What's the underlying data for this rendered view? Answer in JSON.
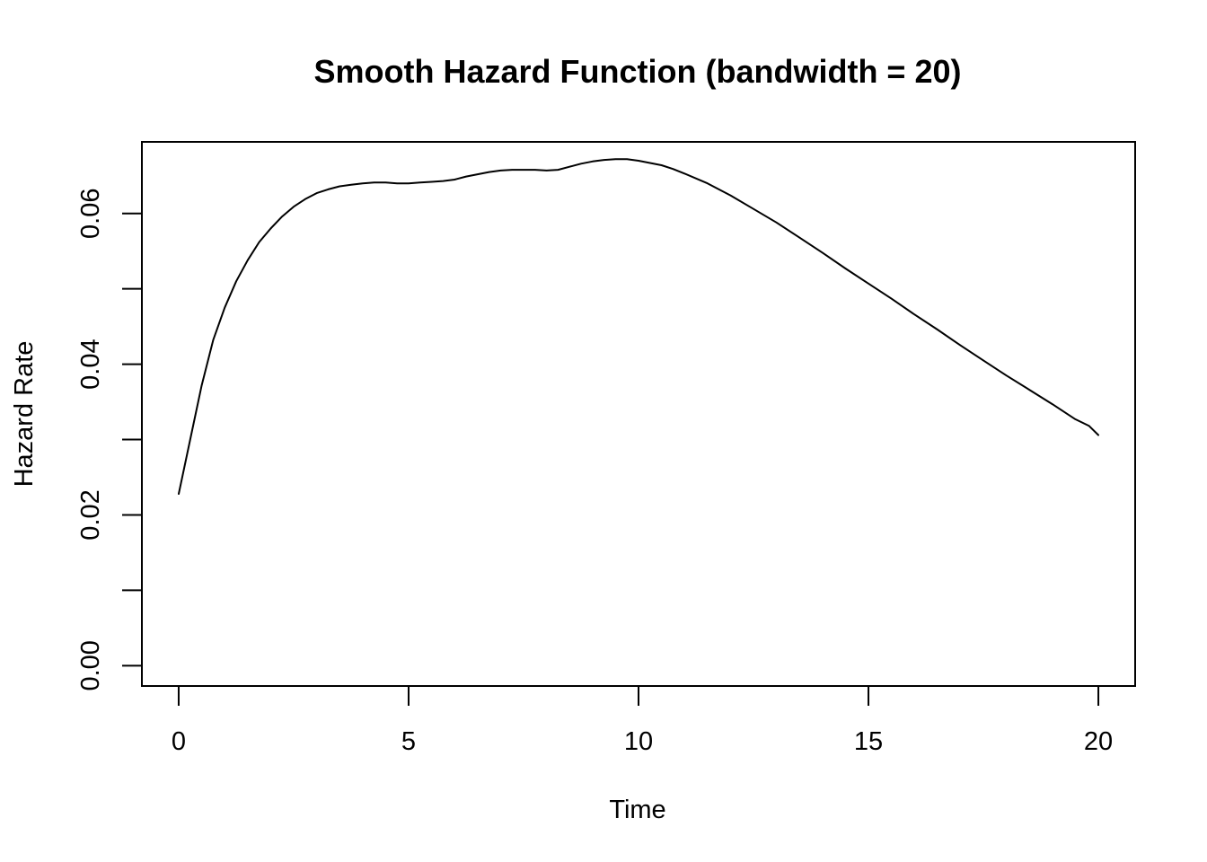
{
  "chart_data": {
    "type": "line",
    "title": "Smooth Hazard Function (bandwidth = 20)",
    "xlabel": "Time",
    "ylabel": "Hazard Rate",
    "xlim": [
      -0.8,
      20.8
    ],
    "ylim": [
      -0.0027,
      0.0695
    ],
    "x_ticks": [
      0,
      5,
      10,
      15,
      20
    ],
    "x_tick_labels": [
      "0",
      "5",
      "10",
      "15",
      "20"
    ],
    "y_ticks": [
      0.0,
      0.01,
      0.02,
      0.03,
      0.04,
      0.05,
      0.06
    ],
    "y_tick_labels": [
      "0.00",
      "",
      "0.02",
      "",
      "0.04",
      "",
      "0.06"
    ],
    "grid": false,
    "line_color": "#000000",
    "series": [
      {
        "x": [
          0,
          0.25,
          0.5,
          0.75,
          1.0,
          1.25,
          1.5,
          1.75,
          2.0,
          2.25,
          2.5,
          2.75,
          3.0,
          3.25,
          3.5,
          3.75,
          4.0,
          4.25,
          4.5,
          4.75,
          5.0,
          5.25,
          5.5,
          5.75,
          6.0,
          6.25,
          6.5,
          6.75,
          7.0,
          7.25,
          7.5,
          7.75,
          8.0,
          8.25,
          8.5,
          8.75,
          9.0,
          9.25,
          9.5,
          9.75,
          10.0,
          10.25,
          10.5,
          10.75,
          11.0,
          11.5,
          12.0,
          12.5,
          13.0,
          13.5,
          14.0,
          14.5,
          15.0,
          15.5,
          16.0,
          16.5,
          17.0,
          17.5,
          18.0,
          18.5,
          19.0,
          19.5,
          19.8,
          20.0
        ],
        "y": [
          0.0228,
          0.03,
          0.0372,
          0.0432,
          0.0475,
          0.051,
          0.0538,
          0.0562,
          0.058,
          0.0596,
          0.0609,
          0.0619,
          0.0627,
          0.0632,
          0.0636,
          0.0638,
          0.064,
          0.0641,
          0.0641,
          0.064,
          0.064,
          0.0641,
          0.0642,
          0.0643,
          0.0645,
          0.0649,
          0.0652,
          0.0655,
          0.0657,
          0.0658,
          0.0658,
          0.0658,
          0.0657,
          0.0658,
          0.0662,
          0.0666,
          0.0669,
          0.0671,
          0.0672,
          0.0672,
          0.067,
          0.0667,
          0.0664,
          0.0659,
          0.0653,
          0.064,
          0.0624,
          0.0606,
          0.0588,
          0.0568,
          0.0548,
          0.0527,
          0.0507,
          0.0487,
          0.0466,
          0.0446,
          0.0425,
          0.0405,
          0.0385,
          0.0366,
          0.0347,
          0.0327,
          0.0318,
          0.0306
        ]
      }
    ]
  }
}
